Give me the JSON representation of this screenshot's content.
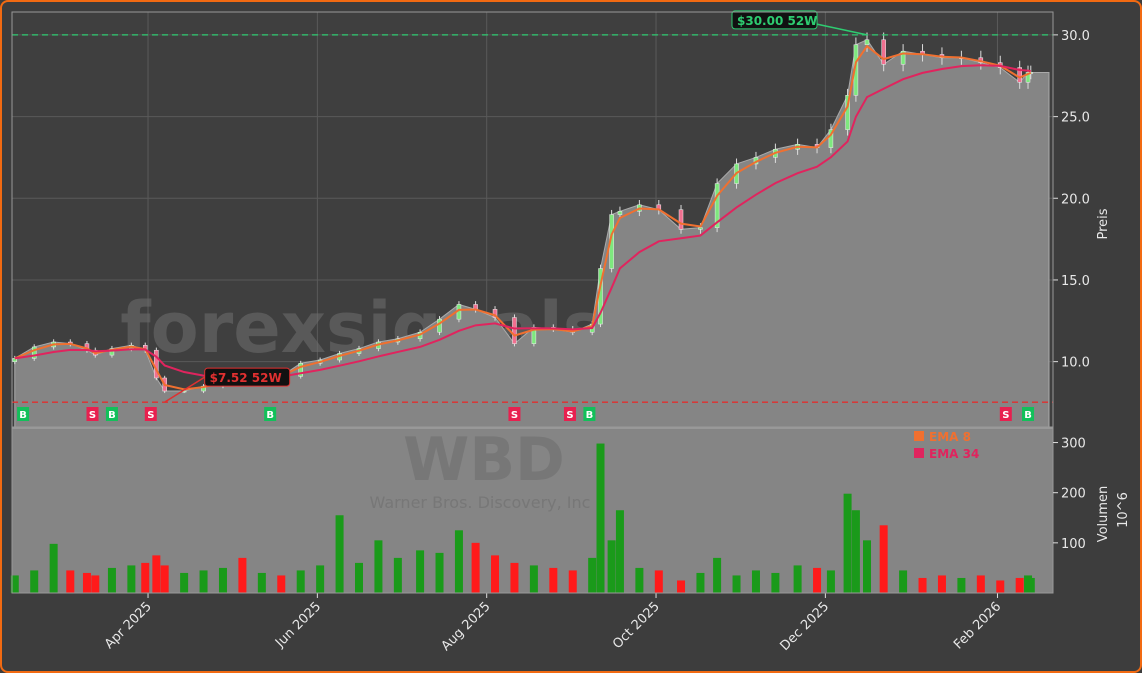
{
  "chart_data": {
    "type": "candlestick-area",
    "ticker": "WBD",
    "company": "Warner Bros. Discovery, Inc",
    "watermark": "forexsignals.trade",
    "ylabel": "Preis",
    "volume_label": "Volumen",
    "volume_unit": "10^6",
    "ylim": [
      6.0,
      31.4
    ],
    "volume_lim": [
      0,
      329
    ],
    "xlim": [
      "2025-02-11",
      "2026-02-21"
    ],
    "price_ticks": [
      10,
      15,
      20,
      25,
      30
    ],
    "price_tick_labels": [
      "10.0",
      "15.0",
      "20.0",
      "25.0",
      "30.0"
    ],
    "volume_ticks": [
      100,
      200,
      300
    ],
    "volume_tick_labels": [
      "100",
      "200",
      "300"
    ],
    "x_ticks": [
      "2025-04-01",
      "2025-06-01",
      "2025-08-01",
      "2025-10-01",
      "2025-12-01",
      "2026-02-01"
    ],
    "x_tick_labels": [
      "Apr 2025",
      "Jun 2025",
      "Aug 2025",
      "Oct 2025",
      "Dec 2025",
      "Feb 2026"
    ],
    "legend": [
      {
        "label": "EMA 8",
        "color": "#f07030",
        "period": 8
      },
      {
        "label": "EMA 34",
        "color": "#e0245e",
        "period": 34
      }
    ],
    "high_52w": {
      "value": 30.0,
      "label": "$30.00 52W",
      "date": "2025-12-16"
    },
    "low_52w": {
      "value": 7.52,
      "label": "$7.52 52W",
      "date": "2025-04-07"
    },
    "series": {
      "dates": [
        "2025-02-12",
        "2025-02-19",
        "2025-02-26",
        "2025-03-04",
        "2025-03-10",
        "2025-03-13",
        "2025-03-19",
        "2025-03-26",
        "2025-03-31",
        "2025-04-04",
        "2025-04-07",
        "2025-04-14",
        "2025-04-21",
        "2025-04-28",
        "2025-05-05",
        "2025-05-12",
        "2025-05-19",
        "2025-05-26",
        "2025-06-02",
        "2025-06-09",
        "2025-06-16",
        "2025-06-23",
        "2025-06-30",
        "2025-07-08",
        "2025-07-15",
        "2025-07-22",
        "2025-07-28",
        "2025-08-04",
        "2025-08-11",
        "2025-08-18",
        "2025-08-25",
        "2025-09-01",
        "2025-09-08",
        "2025-09-11",
        "2025-09-15",
        "2025-09-18",
        "2025-09-25",
        "2025-10-02",
        "2025-10-10",
        "2025-10-17",
        "2025-10-23",
        "2025-10-30",
        "2025-11-06",
        "2025-11-13",
        "2025-11-21",
        "2025-11-28",
        "2025-12-03",
        "2025-12-09",
        "2025-12-12",
        "2025-12-16",
        "2025-12-22",
        "2025-12-29",
        "2026-01-05",
        "2026-01-12",
        "2026-01-19",
        "2026-01-26",
        "2026-02-02",
        "2026-02-09",
        "2026-02-12",
        "2026-02-13"
      ],
      "close": [
        10.2,
        10.9,
        11.2,
        11.1,
        10.7,
        10.4,
        10.8,
        11.0,
        10.7,
        9.0,
        8.2,
        8.2,
        8.5,
        8.8,
        8.7,
        9.4,
        9.1,
        9.9,
        10.1,
        10.5,
        10.8,
        11.2,
        11.4,
        11.8,
        12.6,
        13.5,
        13.2,
        12.7,
        11.1,
        12.1,
        12.0,
        11.8,
        12.3,
        15.7,
        19.0,
        19.2,
        19.6,
        19.3,
        18.1,
        18.2,
        20.9,
        22.1,
        22.5,
        23.0,
        23.3,
        23.1,
        24.2,
        26.3,
        29.4,
        29.7,
        28.2,
        29.0,
        28.8,
        28.6,
        28.6,
        28.3,
        28.0,
        27.1,
        27.7,
        27.7
      ],
      "volume": [
        35,
        45,
        98,
        45,
        40,
        35,
        50,
        55,
        60,
        75,
        55,
        40,
        45,
        50,
        70,
        40,
        35,
        45,
        55,
        155,
        60,
        105,
        70,
        85,
        80,
        125,
        100,
        75,
        60,
        55,
        50,
        45,
        70,
        298,
        105,
        165,
        50,
        45,
        25,
        40,
        70,
        35,
        45,
        40,
        55,
        50,
        45,
        198,
        165,
        105,
        135,
        45,
        30,
        35,
        30,
        35,
        25,
        30,
        35,
        30
      ]
    },
    "signals": [
      {
        "type": "B",
        "date": "2025-02-15"
      },
      {
        "type": "S",
        "date": "2025-03-12"
      },
      {
        "type": "B",
        "date": "2025-03-19"
      },
      {
        "type": "S",
        "date": "2025-04-02"
      },
      {
        "type": "B",
        "date": "2025-05-15"
      },
      {
        "type": "S",
        "date": "2025-08-11"
      },
      {
        "type": "S",
        "date": "2025-08-31"
      },
      {
        "type": "B",
        "date": "2025-09-07"
      },
      {
        "type": "S",
        "date": "2026-02-04"
      },
      {
        "type": "B",
        "date": "2026-02-12"
      }
    ],
    "colors": {
      "up": "#1a9a1a",
      "down": "#ff1a1a",
      "buy": "#12c05a",
      "sell": "#e8204f",
      "area": "#858585",
      "grid": "#5a5a5a",
      "high": "#2ecc71",
      "low": "#e03030"
    }
  }
}
